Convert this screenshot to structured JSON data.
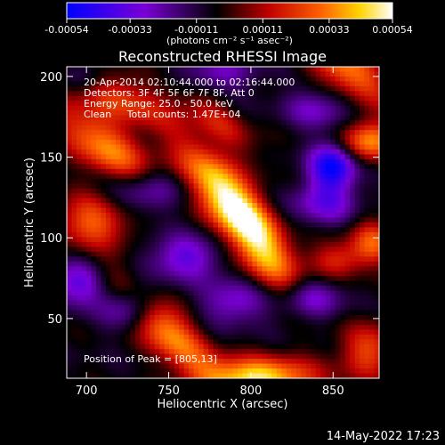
{
  "chart_data": {
    "type": "heatmap",
    "title": "Reconstructed RHESSI Image",
    "xlabel": "Heliocentric X (arcsec)",
    "ylabel": "Heliocentric Y (arcsec)",
    "xlim": [
      688,
      878
    ],
    "ylim": [
      13,
      206
    ],
    "x_ticks": [
      "700",
      "750",
      "800",
      "850"
    ],
    "y_ticks": [
      "50",
      "100",
      "150",
      "200"
    ],
    "x_tick_values": [
      700,
      750,
      800,
      850
    ],
    "y_tick_values": [
      50,
      100,
      150,
      200
    ],
    "colorbar": {
      "min": -0.00054,
      "max": 0.00054,
      "tick_labels": [
        "-0.00054",
        "-0.00033",
        "-0.00011",
        "0.00011",
        "0.00033",
        "0.00054"
      ],
      "tick_values": [
        -0.00054,
        -0.00033,
        -0.00011,
        0.00011,
        0.00033,
        0.00054
      ],
      "units_label": "(photons cm⁻² s⁻¹ asec⁻²)",
      "colors": [
        "#0000ff",
        "#7a00d6",
        "#000000",
        "#c00000",
        "#ff6000",
        "#ffd400",
        "#ffffff"
      ]
    },
    "annotations": [
      "20-Apr-2014 02:10:44.000 to 02:16:44.000",
      "Detectors: 3F 4F 5F 6F 7F 8F, Att 0",
      "Energy Range: 25.0 - 50.0 keV",
      "Clean     Total counts: 1.47E+04"
    ],
    "peak_label": "Position of Peak = [805,13]",
    "grid": false,
    "features": [
      {
        "x": 805,
        "y": 13,
        "amp": 0.00054,
        "sx": 24,
        "sy": 9
      },
      {
        "x": 803,
        "y": 98,
        "amp": 0.00046,
        "sx": 30,
        "sy": 11,
        "angle": -55
      },
      {
        "x": 782,
        "y": 130,
        "amp": 0.00042,
        "sx": 28,
        "sy": 10,
        "angle": -50
      },
      {
        "x": 746,
        "y": 45,
        "amp": 0.00044,
        "sx": 30,
        "sy": 10,
        "angle": -45
      },
      {
        "x": 712,
        "y": 155,
        "amp": 0.0004,
        "sx": 28,
        "sy": 11,
        "angle": -40
      },
      {
        "x": 705,
        "y": 112,
        "amp": 0.00036,
        "sx": 16,
        "sy": 12
      },
      {
        "x": 722,
        "y": 186,
        "amp": 0.00028,
        "sx": 22,
        "sy": 10,
        "angle": -25
      },
      {
        "x": 858,
        "y": 205,
        "amp": 0.0004,
        "sx": 22,
        "sy": 10,
        "angle": -35
      },
      {
        "x": 872,
        "y": 160,
        "amp": 0.00042,
        "sx": 12,
        "sy": 9
      },
      {
        "x": 874,
        "y": 97,
        "amp": 0.00032,
        "sx": 10,
        "sy": 10
      },
      {
        "x": 872,
        "y": 30,
        "amp": 0.0003,
        "sx": 12,
        "sy": 12
      },
      {
        "x": 852,
        "y": 86,
        "amp": 0.00024,
        "sx": 12,
        "sy": 8
      },
      {
        "x": 780,
        "y": 172,
        "amp": 0.0002,
        "sx": 22,
        "sy": 8,
        "angle": -40
      },
      {
        "x": 733,
        "y": 128,
        "amp": -0.00032,
        "sx": 18,
        "sy": 10
      },
      {
        "x": 728,
        "y": 58,
        "amp": -0.00038,
        "sx": 12,
        "sy": 10
      },
      {
        "x": 695,
        "y": 72,
        "amp": -0.0003,
        "sx": 12,
        "sy": 10
      },
      {
        "x": 835,
        "y": 62,
        "amp": -0.00028,
        "sx": 14,
        "sy": 10
      },
      {
        "x": 850,
        "y": 145,
        "amp": -0.00046,
        "sx": 10,
        "sy": 10
      },
      {
        "x": 845,
        "y": 122,
        "amp": -0.00026,
        "sx": 14,
        "sy": 10
      },
      {
        "x": 840,
        "y": 180,
        "amp": -0.0002,
        "sx": 14,
        "sy": 9
      },
      {
        "x": 780,
        "y": 202,
        "amp": -0.0002,
        "sx": 18,
        "sy": 8
      },
      {
        "x": 700,
        "y": 200,
        "amp": -0.00016,
        "sx": 10,
        "sy": 8
      },
      {
        "x": 760,
        "y": 88,
        "amp": -0.00028,
        "sx": 16,
        "sy": 10
      },
      {
        "x": 790,
        "y": 60,
        "amp": -0.00024,
        "sx": 14,
        "sy": 10
      }
    ]
  },
  "footer": {
    "timestamp": "14-May-2022 17:23"
  }
}
